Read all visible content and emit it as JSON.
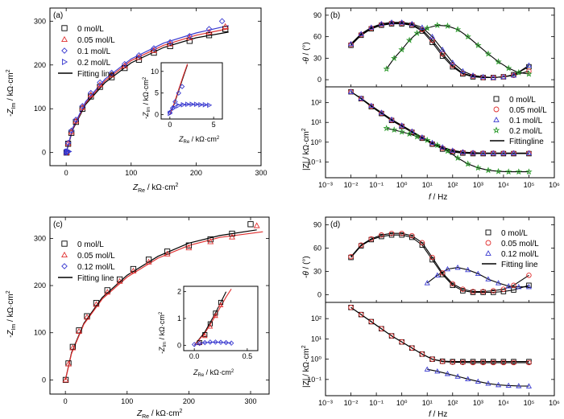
{
  "colors": {
    "s0": "#000000",
    "s1": "#e03030",
    "s2": "#3a3ad0",
    "s3": "#2a9a2a",
    "axis": "#000000"
  },
  "chart_data": [
    {
      "panel": "(a)",
      "type": "scatter",
      "title": "",
      "xlabel": "Z_Re / kΩ·cm²",
      "ylabel": "-Z_Im / kΩ·cm²",
      "xlim": [
        -25,
        300
      ],
      "ylim": [
        -30,
        330
      ],
      "xticks": [
        "0",
        "100",
        "200",
        "300"
      ],
      "yticks": [
        "0",
        "100",
        "200",
        "300"
      ],
      "legend": [
        "0 mol/L",
        "0.05 mol/L",
        "0.1 mol/L",
        "0.2 mol/L",
        "Fitting line"
      ],
      "legend_position": "top-left",
      "series": [
        {
          "name": "0 mol/L",
          "color": "#000000",
          "marker": "square",
          "x": [
            0.5,
            3,
            8,
            15,
            25,
            38,
            52,
            70,
            90,
            112,
            135,
            160,
            190,
            220,
            245
          ],
          "y": [
            0,
            20,
            45,
            70,
            100,
            128,
            150,
            172,
            193,
            212,
            228,
            243,
            255,
            268,
            282
          ]
        },
        {
          "name": "0.05 mol/L",
          "color": "#e03030",
          "marker": "triangle-up",
          "x": [
            0.5,
            3,
            8,
            15,
            25,
            38,
            52,
            70,
            90,
            112,
            135,
            160,
            190,
            220,
            245
          ],
          "y": [
            0,
            21,
            47,
            72,
            103,
            132,
            155,
            177,
            198,
            217,
            233,
            248,
            262,
            275,
            288
          ]
        },
        {
          "name": "0.1 mol/L",
          "color": "#3a3ad0",
          "marker": "diamond",
          "x": [
            0.5,
            3,
            8,
            15,
            25,
            38,
            52,
            70,
            90,
            112,
            135,
            160,
            190,
            220,
            240
          ],
          "y": [
            0,
            22,
            50,
            75,
            106,
            136,
            160,
            182,
            202,
            222,
            238,
            252,
            266,
            282,
            300
          ]
        },
        {
          "name": "0.2 mol/L",
          "color": "#3a3ad0",
          "marker": "triangle-right",
          "x": [
            0.3,
            1,
            2,
            3,
            4
          ],
          "y": [
            0.5,
            1.5,
            2,
            2.2,
            2.3
          ]
        }
      ],
      "fit_curves": [
        {
          "color": "#000000",
          "x": [
            0,
            10,
            30,
            60,
            100,
            150,
            200,
            250
          ],
          "y": [
            0,
            52,
            110,
            160,
            205,
            240,
            262,
            275
          ]
        },
        {
          "color": "#e03030",
          "x": [
            0,
            10,
            30,
            60,
            100,
            150,
            200,
            250
          ],
          "y": [
            0,
            54,
            113,
            164,
            210,
            245,
            268,
            283
          ]
        },
        {
          "color": "#3a3ad0",
          "x": [
            0,
            10,
            30,
            60,
            100,
            150,
            200,
            250
          ],
          "y": [
            0,
            56,
            116,
            168,
            214,
            250,
            273,
            290
          ]
        }
      ],
      "inset": {
        "xlabel": "Z_Re / kΩ·cm²",
        "ylabel": "-Z_Im / kΩ·cm²",
        "xlim": [
          -1,
          6
        ],
        "ylim": [
          -1,
          12
        ],
        "xticks": [
          "0",
          "5"
        ],
        "yticks": [
          "0",
          "5",
          "10"
        ],
        "fit_curves": [
          {
            "color": "#000000",
            "x": [
              0,
              0.5,
              1,
              1.5,
              2
            ],
            "y": [
              0,
              2.5,
              5.5,
              8.5,
              11.5
            ]
          },
          {
            "color": "#e03030",
            "x": [
              0,
              0.5,
              1,
              1.5,
              2
            ],
            "y": [
              0,
              2.7,
              5.8,
              8.8,
              11.7
            ]
          },
          {
            "color": "#3a3ad0",
            "x": [
              -0.2,
              0.3,
              0.8,
              1.5,
              2.5,
              3.5,
              4.5
            ],
            "y": [
              0.3,
              1.6,
              2.2,
              2.4,
              2.4,
              2.3,
              2.2
            ]
          }
        ],
        "series": [
          {
            "color": "#3a3ad0",
            "marker": "diamond",
            "x": [
              0,
              0.3,
              0.6,
              1.0,
              1.4
            ],
            "y": [
              0.5,
              1.5,
              3,
              5,
              6.5
            ]
          },
          {
            "color": "#3a3ad0",
            "marker": "triangle-right",
            "x": [
              0,
              0.5,
              1,
              1.5,
              2,
              2.5,
              3,
              3.5,
              4,
              4.5
            ],
            "y": [
              0.3,
              1.6,
              2.1,
              2.3,
              2.4,
              2.4,
              2.4,
              2.3,
              2.3,
              2.2
            ]
          }
        ]
      }
    },
    {
      "panel": "(b)",
      "type": "line",
      "xlabel": "f / Hz",
      "ylabel_top": "-θ / (°)",
      "ylabel_bottom": "|Z| / kΩ·cm²",
      "xticks": [
        "10⁻³",
        "10⁻²",
        "10⁻¹",
        "10⁰",
        "10¹",
        "10²",
        "10³",
        "10⁴",
        "10⁵",
        "10⁶"
      ],
      "phase_yticks": [
        "0",
        "30",
        "60",
        "90"
      ],
      "ylim_phase": [
        -10,
        100
      ],
      "mod_yticks": [
        "10⁻¹",
        "10⁰",
        "10¹",
        "10²"
      ],
      "ylim_mod_log": [
        -1.8,
        2.8
      ],
      "legend": [
        "0 mol/L",
        "0.05 mol/L",
        "0.1 mol/L",
        "0.2 mol/L",
        "Fittingline"
      ],
      "legend_position": "right-middle",
      "x_logf": [
        -2,
        -1.6,
        -1.2,
        -0.8,
        -0.4,
        0,
        0.4,
        0.8,
        1.2,
        1.6,
        2,
        2.4,
        2.8,
        3.2,
        3.6,
        4,
        4.4,
        5
      ],
      "series": [
        {
          "name": "0 mol/L",
          "color": "#000000",
          "marker": "square",
          "phase": [
            48,
            62,
            71,
            76,
            78,
            78,
            76,
            68,
            52,
            33,
            18,
            8,
            4,
            3,
            3,
            4,
            7,
            18
          ],
          "logZ": [
            2.55,
            2.2,
            1.8,
            1.45,
            1.1,
            0.8,
            0.5,
            0.2,
            -0.1,
            -0.35,
            -0.5,
            -0.55,
            -0.58,
            -0.58,
            -0.58,
            -0.58,
            -0.58,
            -0.58
          ]
        },
        {
          "name": "0.05 mol/L",
          "color": "#e03030",
          "marker": "circle",
          "phase": [
            49,
            63,
            72,
            77,
            79,
            79,
            77,
            70,
            55,
            36,
            20,
            9,
            5,
            3,
            3,
            4,
            6,
            12
          ],
          "logZ": [
            2.55,
            2.2,
            1.82,
            1.47,
            1.12,
            0.82,
            0.52,
            0.22,
            -0.08,
            -0.3,
            -0.45,
            -0.52,
            -0.55,
            -0.56,
            -0.56,
            -0.56,
            -0.56,
            -0.56
          ]
        },
        {
          "name": "0.1 mol/L",
          "color": "#3a3ad0",
          "marker": "triangle-up",
          "phase": [
            50,
            64,
            73,
            78,
            80,
            80,
            78,
            73,
            60,
            42,
            24,
            12,
            6,
            4,
            3,
            4,
            6,
            20
          ],
          "logZ": [
            2.55,
            2.22,
            1.85,
            1.5,
            1.15,
            0.85,
            0.55,
            0.25,
            -0.03,
            -0.25,
            -0.42,
            -0.5,
            -0.53,
            -0.55,
            -0.55,
            -0.55,
            -0.55,
            -0.55
          ]
        },
        {
          "name": "0.2 mol/L",
          "color": "#2a9a2a",
          "marker": "star",
          "x_logf": [
            -0.6,
            -0.3,
            0,
            0.3,
            0.6,
            1.0,
            1.4,
            1.8,
            2.2,
            2.6,
            3.0,
            3.4,
            3.8,
            4.2,
            4.6,
            5
          ],
          "phase": [
            15,
            30,
            42,
            55,
            65,
            72,
            76,
            75,
            70,
            60,
            48,
            36,
            25,
            16,
            10,
            8
          ],
          "logZ": [
            0.7,
            0.62,
            0.52,
            0.42,
            0.28,
            0.1,
            -0.15,
            -0.45,
            -0.8,
            -1.1,
            -1.3,
            -1.42,
            -1.48,
            -1.5,
            -1.5,
            -1.5
          ]
        }
      ]
    },
    {
      "panel": "(c)",
      "type": "scatter",
      "xlabel": "Z_Re / kΩ·cm²",
      "ylabel": "-Z_Im / kΩ·cm²",
      "xlim": [
        -25,
        330
      ],
      "ylim": [
        -30,
        345
      ],
      "xticks": [
        "0",
        "100",
        "200",
        "300"
      ],
      "yticks": [
        "0",
        "100",
        "200",
        "300"
      ],
      "legend": [
        "0 mol/L",
        "0.05 mol/L",
        "0.12 mol/L",
        "Fitting line"
      ],
      "legend_position": "top-left",
      "series": [
        {
          "name": "0 mol/L",
          "color": "#000000",
          "marker": "square",
          "x": [
            0.5,
            5,
            12,
            22,
            35,
            50,
            68,
            88,
            110,
            135,
            165,
            200,
            235,
            270,
            300
          ],
          "y": [
            0,
            35,
            70,
            105,
            135,
            163,
            190,
            213,
            235,
            255,
            272,
            285,
            298,
            310,
            330
          ]
        },
        {
          "name": "0.05 mol/L",
          "color": "#e03030",
          "marker": "triangle-up",
          "x": [
            0.5,
            5,
            12,
            22,
            35,
            50,
            68,
            88,
            110,
            135,
            165,
            200,
            235,
            270,
            310
          ],
          "y": [
            0,
            34,
            68,
            103,
            133,
            160,
            186,
            209,
            231,
            250,
            267,
            280,
            293,
            303,
            327
          ]
        },
        {
          "name": "0.12 mol/L",
          "color": "#3a3ad0",
          "marker": "diamond",
          "x": [
            0,
            0.05,
            0.1
          ],
          "y": [
            0,
            0.05,
            0.1
          ]
        }
      ],
      "fit_curves": [
        {
          "color": "#000000",
          "x": [
            0,
            10,
            30,
            60,
            100,
            150,
            200,
            250,
            310
          ],
          "y": [
            0,
            58,
            120,
            175,
            222,
            262,
            290,
            306,
            318
          ]
        },
        {
          "color": "#e03030",
          "x": [
            0,
            10,
            30,
            60,
            100,
            150,
            200,
            250,
            320
          ],
          "y": [
            0,
            56,
            118,
            172,
            218,
            258,
            285,
            302,
            314
          ]
        }
      ],
      "inset": {
        "xlabel": "Z_Re / kΩ·cm²",
        "ylabel": "-Z_Im / kΩ·cm²",
        "xlim": [
          -0.1,
          0.6
        ],
        "ylim": [
          -0.2,
          2.2
        ],
        "xticks": [
          "0.0",
          "0.5"
        ],
        "yticks": [
          "0",
          "1",
          "2"
        ],
        "fit_curves": [
          {
            "color": "#000000",
            "x": [
              0,
              0.1,
              0.2,
              0.3
            ],
            "y": [
              0,
              0.5,
              1.2,
              2.0
            ]
          },
          {
            "color": "#e03030",
            "x": [
              0,
              0.1,
              0.2,
              0.3,
              0.35
            ],
            "y": [
              0,
              0.45,
              1.1,
              1.8,
              2.1
            ]
          },
          {
            "color": "#3a3ad0",
            "x": [
              0,
              0.1,
              0.2,
              0.3,
              0.35
            ],
            "y": [
              0.02,
              0.1,
              0.12,
              0.1,
              0.08
            ]
          }
        ],
        "series": [
          {
            "color": "#000000",
            "marker": "square",
            "x": [
              0.05,
              0.1,
              0.15,
              0.2,
              0.25
            ],
            "y": [
              0.1,
              0.4,
              0.8,
              1.2,
              1.6
            ]
          },
          {
            "color": "#e03030",
            "marker": "triangle-up",
            "x": [
              0.05,
              0.1,
              0.15,
              0.2,
              0.25
            ],
            "y": [
              0.1,
              0.35,
              0.7,
              1.1,
              1.5
            ]
          },
          {
            "color": "#3a3ad0",
            "marker": "diamond",
            "x": [
              0,
              0.05,
              0.1,
              0.15,
              0.2,
              0.25,
              0.3,
              0.35
            ],
            "y": [
              0.03,
              0.07,
              0.1,
              0.12,
              0.12,
              0.11,
              0.1,
              0.08
            ]
          }
        ]
      }
    },
    {
      "panel": "(d)",
      "type": "line",
      "xlabel": "f / Hz",
      "ylabel_top": "-θ / (°)",
      "ylabel_bottom": "|Z| / kΩ·cm²",
      "xticks": [
        "10⁻³",
        "10⁻²",
        "10⁻¹",
        "10⁰",
        "10¹",
        "10²",
        "10³",
        "10⁴",
        "10⁵",
        "10⁶"
      ],
      "phase_yticks": [
        "0",
        "30",
        "60",
        "90"
      ],
      "ylim_phase": [
        -10,
        100
      ],
      "mod_yticks": [
        "10⁻¹",
        "10⁰",
        "10¹",
        "10²"
      ],
      "ylim_mod_log": [
        -1.8,
        2.8
      ],
      "legend": [
        "0 mol/L",
        "0.05 mol/L",
        "0.12 mol/L",
        "Fitting line"
      ],
      "legend_position": "top-right",
      "x_logf": [
        -2,
        -1.6,
        -1.2,
        -0.8,
        -0.4,
        0,
        0.4,
        0.8,
        1.2,
        1.6,
        2,
        2.4,
        2.8,
        3.2,
        3.6,
        4,
        4.4,
        5
      ],
      "series": [
        {
          "name": "0 mol/L",
          "color": "#000000",
          "marker": "square",
          "phase": [
            48,
            63,
            71,
            75,
            77,
            77,
            74,
            64,
            45,
            26,
            12,
            5,
            3,
            3,
            3,
            4,
            6,
            12
          ],
          "logZ": [
            2.55,
            2.2,
            1.85,
            1.5,
            1.15,
            0.85,
            0.55,
            0.25,
            0,
            -0.1,
            -0.12,
            -0.12,
            -0.12,
            -0.12,
            -0.12,
            -0.12,
            -0.12,
            -0.12
          ]
        },
        {
          "name": "0.05 mol/L",
          "color": "#e03030",
          "marker": "circle",
          "phase": [
            49,
            64,
            72,
            77,
            79,
            79,
            76,
            67,
            48,
            28,
            14,
            7,
            4,
            4,
            5,
            7,
            12,
            25
          ],
          "logZ": [
            2.55,
            2.2,
            1.85,
            1.5,
            1.15,
            0.85,
            0.55,
            0.25,
            0,
            -0.12,
            -0.15,
            -0.16,
            -0.17,
            -0.17,
            -0.17,
            -0.17,
            -0.17,
            -0.17
          ]
        },
        {
          "name": "0.12 mol/L",
          "color": "#3a3ad0",
          "marker": "triangle-up",
          "x_logf": [
            1,
            1.4,
            1.8,
            2.2,
            2.6,
            3,
            3.4,
            3.8,
            4.2,
            4.6,
            5
          ],
          "phase": [
            15,
            25,
            33,
            35,
            32,
            27,
            20,
            15,
            11,
            10,
            10
          ],
          "logZ": [
            -0.5,
            -0.6,
            -0.72,
            -0.85,
            -0.98,
            -1.1,
            -1.2,
            -1.27,
            -1.3,
            -1.32,
            -1.33
          ]
        }
      ]
    }
  ]
}
